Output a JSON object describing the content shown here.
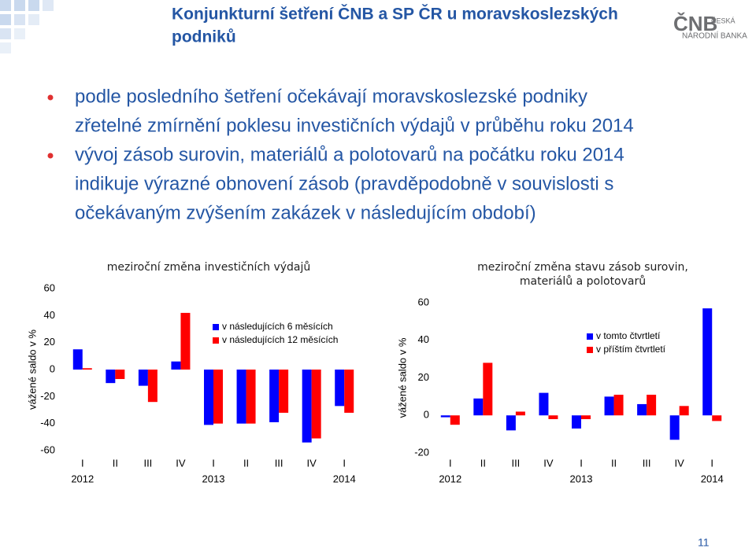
{
  "header": {
    "title_lines": [
      "Konjunkturní šetření ČNB a SP ČR u moravskoslezských",
      "podniků"
    ],
    "logo": "ČNB",
    "logo_sub": [
      "ČESKÁ",
      "NÁRODNÍ BANKA"
    ]
  },
  "bullets": [
    [
      "podle posledního šetření očekávají moravskoslezské podniky",
      "zřetelné zmírnění poklesu investičních výdajů v průběhu roku 2014"
    ],
    [
      "vývoj zásob surovin, materiálů a polotovarů na počátku roku 2014",
      "indikuje výrazné obnovení zásob (pravděpodobně v souvislosti s",
      "očekávaným zvýšením zakázek v následujícím období)"
    ]
  ],
  "chart_data": [
    {
      "type": "bar",
      "title": "meziroční změna investičních výdajů",
      "y_label": "vážené saldo v %",
      "categories": [
        "I",
        "II",
        "III",
        "IV",
        "I",
        "II",
        "III",
        "IV",
        "I"
      ],
      "years": [
        "2012",
        null,
        null,
        null,
        "2013",
        null,
        null,
        null,
        "2014"
      ],
      "series": [
        {
          "name": "v následujících 6 měsících",
          "color": "#0000ff",
          "values": [
            15,
            -10,
            -12,
            6,
            -41,
            -40,
            -39,
            -54,
            -27
          ]
        },
        {
          "name": "v následujících 12 měsících",
          "color": "#ff0000",
          "values": [
            1,
            -7,
            -24,
            42,
            -40,
            -40,
            -32,
            -51,
            -32
          ]
        }
      ],
      "ylim": [
        -60,
        60
      ],
      "yticks": [
        -60,
        -40,
        -20,
        0,
        20,
        40,
        60
      ],
      "grid": false,
      "legend": "upper right"
    },
    {
      "type": "bar",
      "title": [
        "meziroční změna stavu zásob surovin,",
        "materiálů a polotovarů"
      ],
      "y_label": "vážené saldo v %",
      "categories": [
        "I",
        "II",
        "III",
        "IV",
        "I",
        "II",
        "III",
        "IV",
        "I"
      ],
      "years": [
        "2012",
        null,
        null,
        null,
        "2013",
        null,
        null,
        null,
        "2014"
      ],
      "series": [
        {
          "name": "v tomto čtvrtletí",
          "color": "#0000ff",
          "values": [
            -1,
            9,
            -8,
            12,
            -7,
            10,
            6,
            -13,
            57
          ]
        },
        {
          "name": "v příštím čtvrtletí",
          "color": "#ff0000",
          "values": [
            -5,
            28,
            2,
            -2,
            -2,
            11,
            11,
            5,
            -3
          ]
        }
      ],
      "ylim": [
        -20,
        60
      ],
      "yticks": [
        -20,
        0,
        20,
        40,
        60
      ],
      "grid": false,
      "legend": "upper right"
    }
  ],
  "page_number": "11"
}
